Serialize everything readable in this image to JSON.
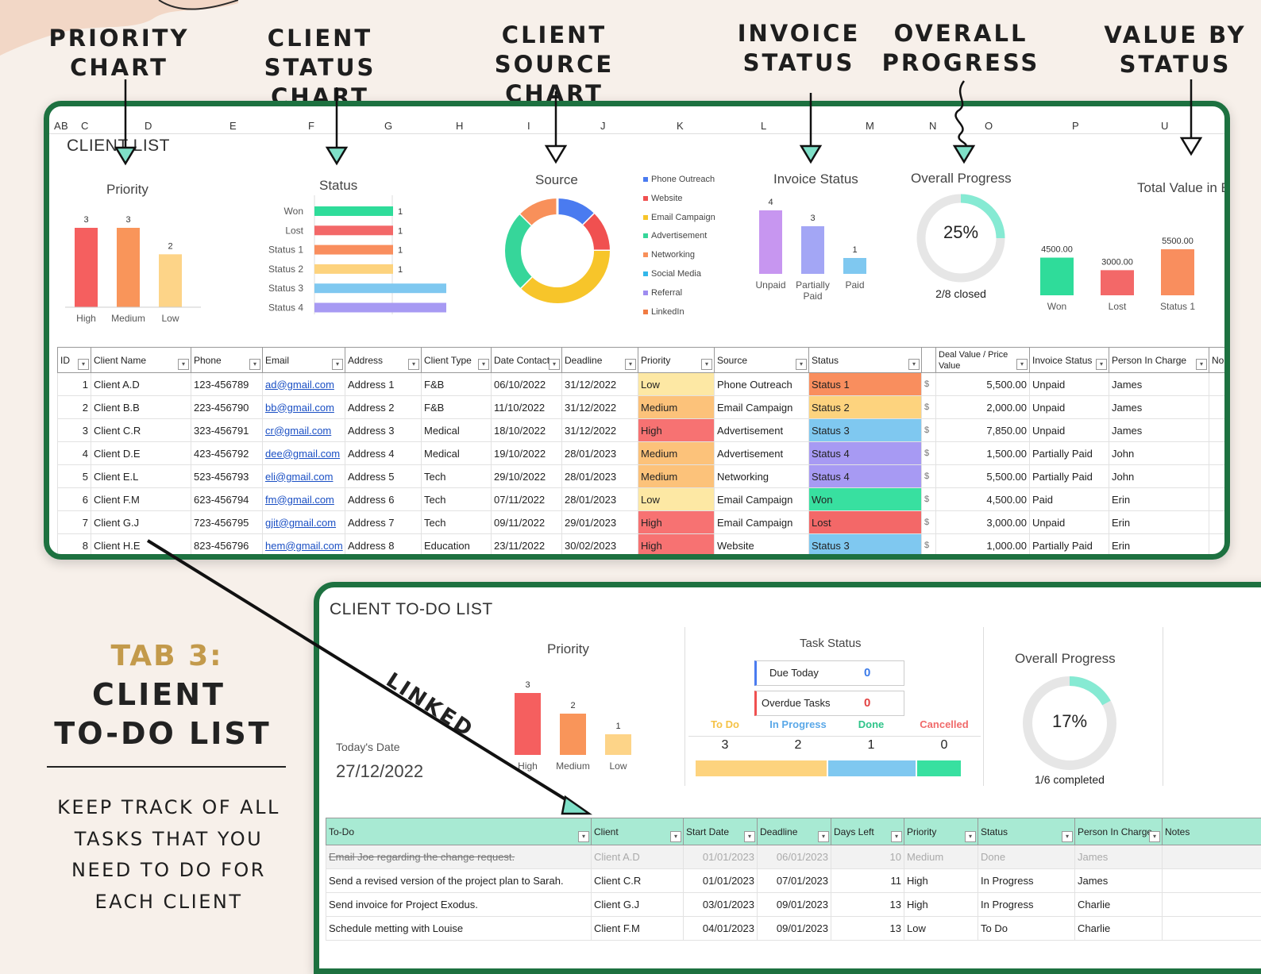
{
  "callouts": [
    {
      "line1": "PRIORITY",
      "line2": "CHART"
    },
    {
      "line1": "CLIENT STATUS",
      "line2": "CHART"
    },
    {
      "line1": "CLIENT SOURCE",
      "line2": "CHART"
    },
    {
      "line1": "INVOICE",
      "line2": "STATUS"
    },
    {
      "line1": "OVERALL",
      "line2": "PROGRESS"
    },
    {
      "line1": "VALUE BY",
      "line2": "STATUS"
    }
  ],
  "sheet1": {
    "title": "CLIENT LIST",
    "col_letters": [
      "A",
      "B",
      "C",
      "D",
      "E",
      "F",
      "G",
      "H",
      "I",
      "J",
      "K",
      "L",
      "M",
      "N",
      "O",
      "P",
      "U"
    ],
    "priority_chart": {
      "title": "Priority",
      "categories": [
        "High",
        "Medium",
        "Low"
      ],
      "values": [
        3,
        3,
        2
      ],
      "colors": [
        "#f55f5f",
        "#f9955a",
        "#fdd488"
      ]
    },
    "status_chart": {
      "title": "Status",
      "categories": [
        "Won",
        "Lost",
        "Status 1",
        "Status 2",
        "Status 3",
        "Status 4"
      ],
      "values": [
        1,
        1,
        1,
        1,
        2,
        2
      ],
      "colors": [
        "#2fdc9a",
        "#f36868",
        "#f98e5e",
        "#fdd37e",
        "#7fc8f0",
        "#a79af3"
      ]
    },
    "source_chart": {
      "title": "Source",
      "legend": [
        {
          "label": "Phone Outreach",
          "color": "#4a7bf0"
        },
        {
          "label": "Website",
          "color": "#f05050"
        },
        {
          "label": "Email Campaign",
          "color": "#f7c52a"
        },
        {
          "label": "Advertisement",
          "color": "#36d69a"
        },
        {
          "label": "Networking",
          "color": "#f8905a"
        },
        {
          "label": "Social Media",
          "color": "#33b7ea"
        },
        {
          "label": "Referral",
          "color": "#9f8df0"
        },
        {
          "label": "LinkedIn",
          "color": "#f07b42"
        }
      ],
      "values": [
        1,
        1,
        3,
        2,
        1,
        0,
        0,
        0
      ]
    },
    "invoice_chart": {
      "title": "Invoice Status",
      "categories": [
        "Unpaid",
        "Partially Paid",
        "Paid"
      ],
      "values": [
        4,
        3,
        1
      ],
      "colors": [
        "#c796f0",
        "#a3a6f5",
        "#7fc8f0"
      ]
    },
    "progress": {
      "title": "Overall Progress",
      "percent_label": "25%",
      "percent": 0.25,
      "caption": "2/8 closed"
    },
    "value_chart": {
      "title": "Total Value in E",
      "categories": [
        "Won",
        "Lost",
        "Status 1"
      ],
      "values": [
        4500,
        3000,
        5500
      ],
      "value_labels": [
        "4500.00",
        "3000.00",
        "5500.00"
      ],
      "colors": [
        "#2fdc9a",
        "#f36868",
        "#f98e5e"
      ]
    },
    "headers": [
      "ID",
      "Client Name",
      "Phone",
      "Email",
      "Address",
      "Client Type",
      "Date Contact",
      "Deadline",
      "Priority",
      "Source",
      "Status",
      "",
      "Deal Value / Price Value",
      "Invoice Status",
      "Person In Charge",
      "No"
    ],
    "rows": [
      {
        "id": "1",
        "name": "Client A.D",
        "phone": "123-456789",
        "email": "ad@gmail.com",
        "address": "Address 1",
        "type": "F&B",
        "contact": "06/10/2022",
        "deadline": "31/12/2022",
        "priority": "Low",
        "source": "Phone Outreach",
        "status": "Status 1",
        "cur": "$",
        "value": "5,500.00",
        "invoice": "Unpaid",
        "person": "James"
      },
      {
        "id": "2",
        "name": "Client B.B",
        "phone": "223-456790",
        "email": "bb@gmail.com",
        "address": "Address 2",
        "type": "F&B",
        "contact": "11/10/2022",
        "deadline": "31/12/2022",
        "priority": "Medium",
        "source": "Email Campaign",
        "status": "Status 2",
        "cur": "$",
        "value": "2,000.00",
        "invoice": "Unpaid",
        "person": "James"
      },
      {
        "id": "3",
        "name": "Client C.R",
        "phone": "323-456791",
        "email": "cr@gmail.com",
        "address": "Address 3",
        "type": "Medical",
        "contact": "18/10/2022",
        "deadline": "31/12/2022",
        "priority": "High",
        "source": "Advertisement",
        "status": "Status 3",
        "cur": "$",
        "value": "7,850.00",
        "invoice": "Unpaid",
        "person": "James"
      },
      {
        "id": "4",
        "name": "Client D.E",
        "phone": "423-456792",
        "email": "dee@gmail.com",
        "address": "Address 4",
        "type": "Medical",
        "contact": "19/10/2022",
        "deadline": "28/01/2023",
        "priority": "Medium",
        "source": "Advertisement",
        "status": "Status 4",
        "cur": "$",
        "value": "1,500.00",
        "invoice": "Partially Paid",
        "person": "John"
      },
      {
        "id": "5",
        "name": "Client E.L",
        "phone": "523-456793",
        "email": "eli@gmail.com",
        "address": "Address 5",
        "type": "Tech",
        "contact": "29/10/2022",
        "deadline": "28/01/2023",
        "priority": "Medium",
        "source": "Networking",
        "status": "Status 4",
        "cur": "$",
        "value": "5,500.00",
        "invoice": "Partially Paid",
        "person": "John"
      },
      {
        "id": "6",
        "name": "Client F.M",
        "phone": "623-456794",
        "email": "fm@gmail.com",
        "address": "Address 6",
        "type": "Tech",
        "contact": "07/11/2022",
        "deadline": "28/01/2023",
        "priority": "Low",
        "source": "Email Campaign",
        "status": "Won",
        "cur": "$",
        "value": "4,500.00",
        "invoice": "Paid",
        "person": "Erin"
      },
      {
        "id": "7",
        "name": "Client G.J",
        "phone": "723-456795",
        "email": "gjit@gmail.com",
        "address": "Address 7",
        "type": "Tech",
        "contact": "09/11/2022",
        "deadline": "29/01/2023",
        "priority": "High",
        "source": "Email Campaign",
        "status": "Lost",
        "cur": "$",
        "value": "3,000.00",
        "invoice": "Unpaid",
        "person": "Erin"
      },
      {
        "id": "8",
        "name": "Client H.E",
        "phone": "823-456796",
        "email": "hem@gmail.com",
        "address": "Address 8",
        "type": "Education",
        "contact": "23/11/2022",
        "deadline": "30/02/2023",
        "priority": "High",
        "source": "Website",
        "status": "Status 3",
        "cur": "$",
        "value": "1,000.00",
        "invoice": "Partially Paid",
        "person": "Erin"
      }
    ],
    "priority_colors": {
      "Low": "#fde8a4",
      "Medium": "#fcc27a",
      "High": "#f77272"
    },
    "status_colors": {
      "Status 1": "#f98e5e",
      "Status 2": "#fdd37e",
      "Status 3": "#7fc8f0",
      "Status 4": "#a79af3",
      "Won": "#38e0a0",
      "Lost": "#f36868"
    }
  },
  "left_panel": {
    "tab": "TAB 3:",
    "heading1": "CLIENT",
    "heading2": "TO-DO LIST",
    "desc": [
      "KEEP TRACK OF ALL",
      "TASKS THAT YOU",
      "NEED TO DO FOR",
      "EACH CLIENT"
    ]
  },
  "linked_label": "LINKED",
  "sheet2": {
    "title": "CLIENT TO-DO LIST",
    "date_label": "Today's Date",
    "date_value": "27/12/2022",
    "priority_chart": {
      "title": "Priority",
      "categories": [
        "High",
        "Medium",
        "Low"
      ],
      "values": [
        3,
        2,
        1
      ],
      "colors": [
        "#f55f5f",
        "#f9955a",
        "#fdd488"
      ]
    },
    "task_status": {
      "title": "Task Status",
      "due_today_label": "Due Today",
      "due_today_value": "0",
      "overdue_label": "Overdue Tasks",
      "overdue_value": "0",
      "counts": [
        {
          "label": "To Do",
          "value": "3",
          "color": "#f5c246"
        },
        {
          "label": "In Progress",
          "value": "2",
          "color": "#5aa8e8"
        },
        {
          "label": "Done",
          "value": "1",
          "color": "#2fc48a"
        },
        {
          "label": "Cancelled",
          "value": "0",
          "color": "#f06a6a"
        }
      ],
      "bar": [
        {
          "value": 3,
          "color": "#fdd37e"
        },
        {
          "value": 2,
          "color": "#7fc8f0"
        },
        {
          "value": 1,
          "color": "#38e0a0"
        }
      ]
    },
    "progress": {
      "title": "Overall Progress",
      "percent_label": "17%",
      "percent": 0.17,
      "caption": "1/6 completed"
    },
    "headers": [
      "To-Do",
      "Client",
      "Start Date",
      "Deadline",
      "Days Left",
      "Priority",
      "Status",
      "Person In Charge",
      "Notes"
    ],
    "rows": [
      {
        "todo": "Email Joe regarding the change request.",
        "client": "Client A.D",
        "start": "01/01/2023",
        "deadline": "06/01/2023",
        "days": "10",
        "priority": "Medium",
        "status": "Done",
        "person": "James",
        "done": true
      },
      {
        "todo": "Send a revised version of the project plan to Sarah.",
        "client": "Client C.R",
        "start": "01/01/2023",
        "deadline": "07/01/2023",
        "days": "11",
        "priority": "High",
        "status": "In Progress",
        "person": "James",
        "done": false
      },
      {
        "todo": "Send invoice for Project Exodus.",
        "client": "Client G.J",
        "start": "03/01/2023",
        "deadline": "09/01/2023",
        "days": "13",
        "priority": "High",
        "status": "In Progress",
        "person": "Charlie",
        "done": false
      },
      {
        "todo": "Schedule metting with Louise",
        "client": "Client F.M",
        "start": "04/01/2023",
        "deadline": "09/01/2023",
        "days": "13",
        "priority": "Low",
        "status": "To Do",
        "person": "Charlie",
        "done": false
      }
    ]
  }
}
